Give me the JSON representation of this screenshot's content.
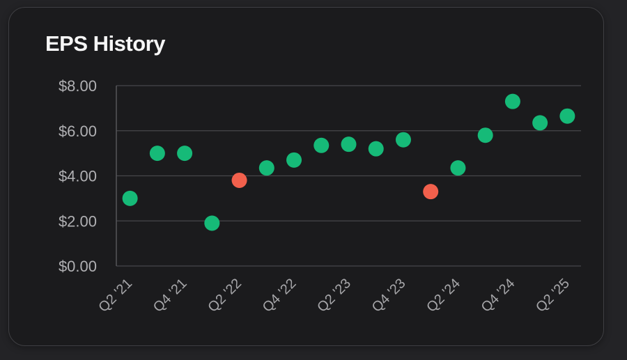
{
  "page": {
    "background": "#232326"
  },
  "card": {
    "title": "EPS History",
    "background": "#1b1b1d",
    "border_color": "#3f3f43"
  },
  "colors": {
    "title_text": "#f6f6f6",
    "y_tick_text": "#b0b0b3",
    "x_tick_text": "#a6a6a9",
    "gridline": "#47474b",
    "axis_line": "#56565a",
    "point_green": "#16ba78",
    "point_red": "#f2604c"
  },
  "chart_data": {
    "type": "scatter",
    "title": "EPS History",
    "xlabel": "",
    "ylabel": "",
    "ylim": [
      0,
      8
    ],
    "grid": true,
    "legend": "none",
    "point_radius": 11,
    "y_ticks": [
      {
        "value": 8,
        "label": "$8.00"
      },
      {
        "value": 6,
        "label": "$6.00"
      },
      {
        "value": 4,
        "label": "$4.00"
      },
      {
        "value": 2,
        "label": "$2.00"
      },
      {
        "value": 0,
        "label": "$0.00"
      }
    ],
    "x_tick_labels": [
      "Q2 '21",
      "Q4 '21",
      "Q2 '22",
      "Q4 '22",
      "Q2 '23",
      "Q4 '23",
      "Q2 '24",
      "Q4 '24",
      "Q2 '25"
    ],
    "points": [
      {
        "quarter": "Q2 '21",
        "eps": 3.0,
        "color": "green"
      },
      {
        "quarter": "Q3 '21",
        "eps": 5.0,
        "color": "green"
      },
      {
        "quarter": "Q4 '21",
        "eps": 5.0,
        "color": "green"
      },
      {
        "quarter": "Q1 '22",
        "eps": 1.9,
        "color": "green"
      },
      {
        "quarter": "Q2 '22",
        "eps": 3.8,
        "color": "red"
      },
      {
        "quarter": "Q3 '22",
        "eps": 4.35,
        "color": "green"
      },
      {
        "quarter": "Q4 '22",
        "eps": 4.7,
        "color": "green"
      },
      {
        "quarter": "Q1 '23",
        "eps": 5.35,
        "color": "green"
      },
      {
        "quarter": "Q2 '23",
        "eps": 5.4,
        "color": "green"
      },
      {
        "quarter": "Q3 '23",
        "eps": 5.2,
        "color": "green"
      },
      {
        "quarter": "Q4 '23",
        "eps": 5.6,
        "color": "green"
      },
      {
        "quarter": "Q1 '24",
        "eps": 3.3,
        "color": "red"
      },
      {
        "quarter": "Q2 '24",
        "eps": 4.35,
        "color": "green"
      },
      {
        "quarter": "Q3 '24",
        "eps": 5.8,
        "color": "green"
      },
      {
        "quarter": "Q4 '24",
        "eps": 7.3,
        "color": "green"
      },
      {
        "quarter": "Q1 '25",
        "eps": 6.35,
        "color": "green"
      },
      {
        "quarter": "Q2 '25",
        "eps": 6.65,
        "color": "green"
      }
    ]
  }
}
